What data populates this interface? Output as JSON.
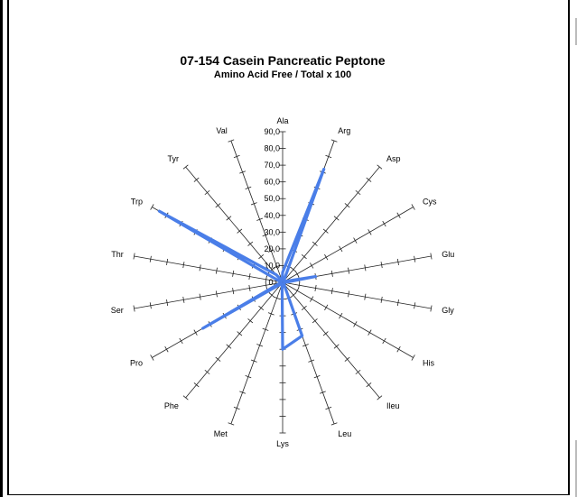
{
  "chart_data": {
    "type": "radar",
    "title": "07-154 Casein Pancreatic Peptone",
    "subtitle": "Amino Acid Free / Total x 100",
    "categories": [
      "Ala",
      "Arg",
      "Asp",
      "Cys",
      "Glu",
      "Gly",
      "His",
      "Ileu",
      "Leu",
      "Lys",
      "Met",
      "Phe",
      "Pro",
      "Ser",
      "Thr",
      "Trp",
      "Tyr",
      "Val"
    ],
    "tick_labels": [
      "0,0",
      "10,0",
      "20,0",
      "30,0",
      "40,0",
      "50,0",
      "60,0",
      "70,0",
      "80,0",
      "90,0"
    ],
    "range": [
      0,
      90
    ],
    "series": [
      {
        "values": [
          6,
          72,
          1,
          1,
          20,
          1,
          1,
          1,
          34,
          40,
          1,
          1,
          55,
          1,
          1,
          85,
          6,
          1
        ],
        "color": "#4a7ee8"
      }
    ],
    "grid": false
  }
}
